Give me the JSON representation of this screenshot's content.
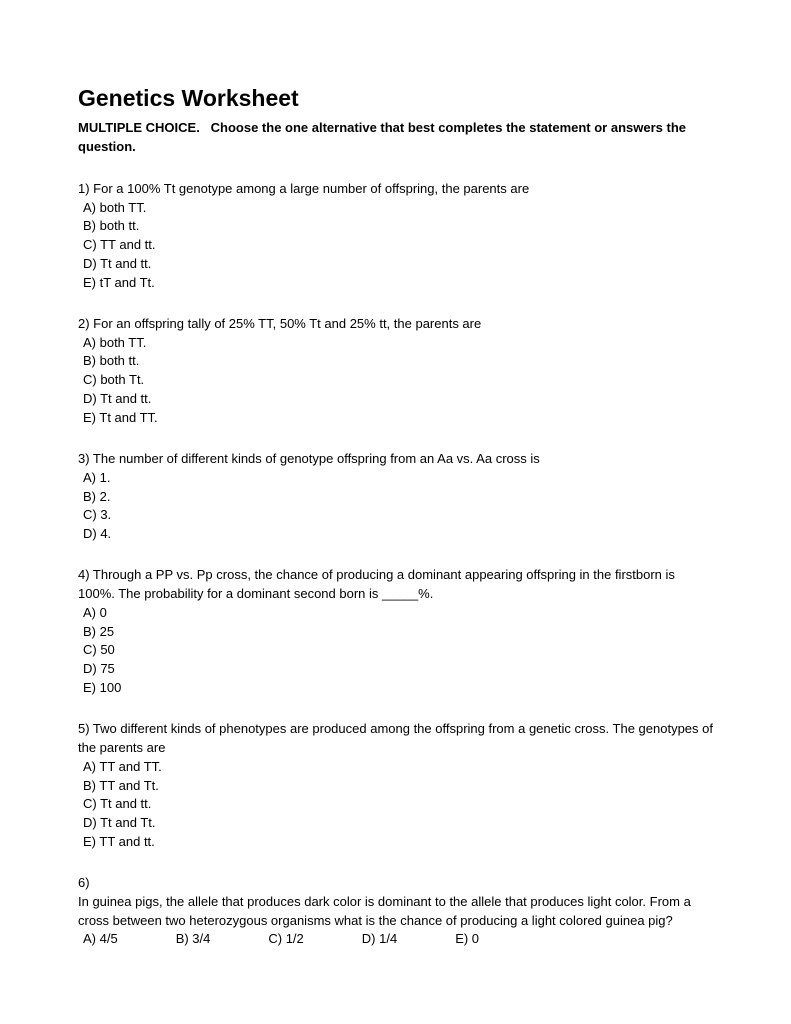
{
  "title": "Genetics Worksheet",
  "instructions": "MULTIPLE CHOICE.   Choose the one alternative that best completes the statement or answers the question.",
  "questions": [
    {
      "number": "1)",
      "text": "For a 100% Tt genotype among a large number of offspring, the parents are",
      "options": [
        "A) both TT.",
        "B) both tt.",
        "C) TT and tt.",
        "D) Tt and tt.",
        "E) tT and Tt."
      ],
      "layout": "vertical"
    },
    {
      "number": "2)",
      "text": "For an offspring tally of 25% TT, 50% Tt and 25% tt, the parents are",
      "options": [
        "A) both TT.",
        "B) both tt.",
        "C) both Tt.",
        "D) Tt and tt.",
        "E) Tt and TT."
      ],
      "layout": "vertical"
    },
    {
      "number": "3)",
      "text": "The number of different kinds of genotype offspring from an Aa vs. Aa cross is",
      "options": [
        "A) 1.",
        "B) 2.",
        "C) 3.",
        "D) 4."
      ],
      "layout": "vertical"
    },
    {
      "number": "4)",
      "text": "Through a PP vs. Pp cross, the chance of producing a dominant appearing offspring in the firstborn is 100%. The probability for a dominant second born is _____%.",
      "options": [
        "A) 0",
        "B) 25",
        "C) 50",
        "D) 75",
        "E) 100"
      ],
      "layout": "vertical"
    },
    {
      "number": "5)",
      "text": "Two different kinds of phenotypes are produced among the offspring from a genetic cross. The genotypes of the parents are",
      "options": [
        "A) TT and TT.",
        "B) TT and Tt.",
        "C) Tt and tt.",
        "D) Tt and Tt.",
        "E) TT and tt."
      ],
      "layout": "vertical"
    },
    {
      "number": "6)",
      "text": "In guinea pigs, the allele that produces dark color is dominant to the allele that produces light color. From a cross between two heterozygous organisms what is the chance of producing a light colored guinea pig?",
      "options": [
        "A) 4/5",
        "B) 3/4",
        "C) 1/2",
        "D) 1/4",
        "E) 0"
      ],
      "layout": "horizontal",
      "newline_after_number": true
    }
  ]
}
